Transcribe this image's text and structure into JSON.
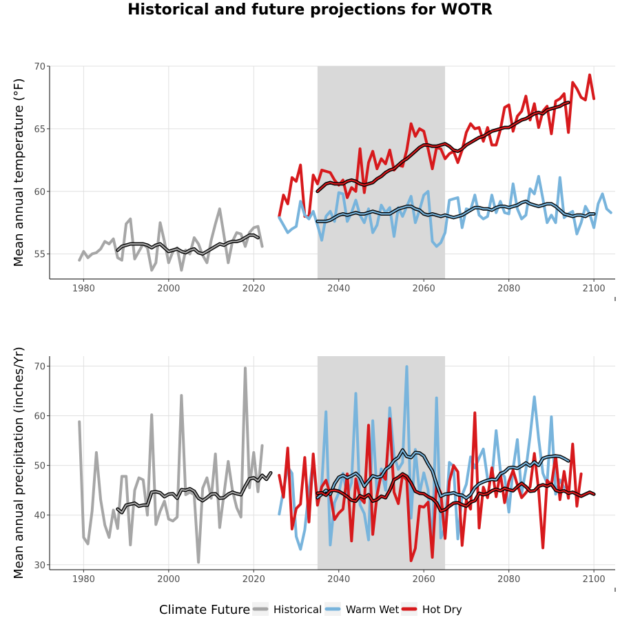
{
  "title": "Historical and future projections for WOTR",
  "colors": {
    "Historical": "#a6a6a6",
    "Warm Wet": "#78b4dc",
    "Hot Dry": "#d7191c",
    "smooth": "#000000",
    "period_band": "#d9d9d9"
  },
  "legend": {
    "title": "Climate Future",
    "items": [
      "Historical",
      "Warm Wet",
      "Hot Dry"
    ]
  },
  "chart_data": [
    {
      "type": "line",
      "ylabel": "Mean annual temperature (°F)",
      "xlim": [
        1972,
        2105
      ],
      "ylim": [
        53,
        70
      ],
      "xticks": [
        1980,
        2000,
        2020,
        2040,
        2060,
        2080,
        2100
      ],
      "yticks": [
        55,
        60,
        65,
        70
      ],
      "grid": true,
      "shaded_period": [
        2035,
        2065
      ],
      "series": [
        {
          "name": "Historical",
          "x_start": 1979,
          "values": [
            54.5,
            55.2,
            54.7,
            55.0,
            55.1,
            55.4,
            56.0,
            55.8,
            56.2,
            54.7,
            54.5,
            57.4,
            57.8,
            54.6,
            55.2,
            55.8,
            55.5,
            53.7,
            54.3,
            57.5,
            56.0,
            54.3,
            55.2,
            55.5,
            53.7,
            55.3,
            55.0,
            56.3,
            55.8,
            54.9,
            54.3,
            56.1,
            57.4,
            58.6,
            56.5,
            54.3,
            56.0,
            56.7,
            56.6,
            55.6,
            56.7,
            57.1,
            57.2,
            55.6
          ]
        },
        {
          "name": "Hot Dry",
          "x_start": 2026,
          "values": [
            58.0,
            59.7,
            59.0,
            61.1,
            60.8,
            62.1,
            58.0,
            58.0,
            61.3,
            60.6,
            61.7,
            61.6,
            61.5,
            60.9,
            60.5,
            60.9,
            59.5,
            60.3,
            60.0,
            63.4,
            59.9,
            62.3,
            63.2,
            61.8,
            62.6,
            62.2,
            63.3,
            61.7,
            62.1,
            62.0,
            63.3,
            65.4,
            64.4,
            65.0,
            64.8,
            63.4,
            61.8,
            63.5,
            63.4,
            62.6,
            63.0,
            63.2,
            62.3,
            63.3,
            64.7,
            65.4,
            65.0,
            65.1,
            64.0,
            65.1,
            63.7,
            63.7,
            64.9,
            66.7,
            66.9,
            64.8,
            66.0,
            66.4,
            67.6,
            65.7,
            67.0,
            65.1,
            66.4,
            66.8,
            64.6,
            67.2,
            67.4,
            67.8,
            64.7,
            68.7,
            68.2,
            67.5,
            67.3,
            69.3,
            67.4
          ]
        },
        {
          "name": "Warm Wet",
          "x_start": 2026,
          "values": [
            57.9,
            57.3,
            56.7,
            57.0,
            57.2,
            59.2,
            58.1,
            57.8,
            58.4,
            57.3,
            56.1,
            58.0,
            58.4,
            57.6,
            59.9,
            59.8,
            57.6,
            58.3,
            59.3,
            58.1,
            57.5,
            58.6,
            56.7,
            57.3,
            58.9,
            58.3,
            58.7,
            56.4,
            58.7,
            58.0,
            58.8,
            59.6,
            57.5,
            58.5,
            59.7,
            60.0,
            56.0,
            55.6,
            55.9,
            56.7,
            59.3,
            59.4,
            59.5,
            57.1,
            58.6,
            58.5,
            59.7,
            58.1,
            57.8,
            58.0,
            59.7,
            58.3,
            59.2,
            58.3,
            58.2,
            60.6,
            58.6,
            57.8,
            58.1,
            60.2,
            59.8,
            61.2,
            59.4,
            57.5,
            58.1,
            57.5,
            61.1,
            57.9,
            58.2,
            58.4,
            56.6,
            57.5,
            58.8,
            58.2,
            57.1,
            59.0,
            59.8,
            58.6,
            58.3
          ]
        },
        {
          "name": "Historical smooth",
          "x_start": 1988,
          "values": [
            55.3,
            55.6,
            55.7,
            55.8,
            55.8,
            55.8,
            55.8,
            55.7,
            55.5,
            55.7,
            55.8,
            55.5,
            55.2,
            55.3,
            55.4,
            55.2,
            55.1,
            55.3,
            55.4,
            55.1,
            55.0,
            55.2,
            55.4,
            55.6,
            55.8,
            55.7,
            55.9,
            56.0,
            56.0,
            56.1,
            56.3,
            56.5,
            56.5,
            56.3
          ]
        },
        {
          "name": "Hot Dry smooth",
          "x_start": 2035,
          "values": [
            60.0,
            60.3,
            60.6,
            60.7,
            60.6,
            60.6,
            60.6,
            60.8,
            60.9,
            60.8,
            60.6,
            60.5,
            60.6,
            60.7,
            61.0,
            61.2,
            61.5,
            61.7,
            61.8,
            62.1,
            62.4,
            62.6,
            62.9,
            63.2,
            63.5,
            63.7,
            63.7,
            63.6,
            63.6,
            63.7,
            63.8,
            63.6,
            63.3,
            63.2,
            63.4,
            63.7,
            63.9,
            64.1,
            64.3,
            64.4,
            64.6,
            64.8,
            64.9,
            65.0,
            65.1,
            65.1,
            65.3,
            65.5,
            65.7,
            65.8,
            66.0,
            66.2,
            66.3,
            66.2,
            66.5,
            66.6,
            66.7,
            66.8,
            67.0,
            67.1
          ]
        },
        {
          "name": "Warm Wet smooth",
          "x_start": 2035,
          "values": [
            57.6,
            57.6,
            57.6,
            57.7,
            57.9,
            58.1,
            58.2,
            58.1,
            58.2,
            58.3,
            58.2,
            58.2,
            58.3,
            58.4,
            58.3,
            58.2,
            58.2,
            58.2,
            58.4,
            58.6,
            58.7,
            58.8,
            58.8,
            58.6,
            58.5,
            58.2,
            58.1,
            58.2,
            58.1,
            58.0,
            58.1,
            58.0,
            57.9,
            58.0,
            58.1,
            58.3,
            58.5,
            58.7,
            58.7,
            58.6,
            58.6,
            58.5,
            58.7,
            58.8,
            58.8,
            58.7,
            58.8,
            58.9,
            59.1,
            59.2,
            59.0,
            58.9,
            58.8,
            58.9,
            59.0,
            59.0,
            58.8,
            58.5,
            58.2,
            58.1,
            58.0,
            58.1,
            58.1,
            58.0,
            58.2,
            58.2
          ]
        }
      ]
    },
    {
      "type": "line",
      "ylabel": "Mean annual precipitation (inches/Yr)",
      "xlim": [
        1972,
        2105
      ],
      "ylim": [
        29,
        72
      ],
      "xticks": [
        1980,
        2000,
        2020,
        2040,
        2060,
        2080,
        2100
      ],
      "yticks": [
        30,
        40,
        50,
        60,
        70
      ],
      "grid": true,
      "shaded_period": [
        2035,
        2065
      ],
      "series": [
        {
          "name": "Historical",
          "x_start": 1979,
          "values": [
            58.8,
            35.5,
            34.2,
            40.8,
            52.6,
            43.1,
            38.0,
            35.5,
            41.0,
            37.3,
            47.8,
            47.8,
            34.0,
            45.0,
            47.5,
            47.1,
            40.0,
            60.2,
            38.1,
            40.8,
            42.8,
            39.2,
            38.8,
            39.6,
            64.1,
            44.1,
            44.6,
            44.1,
            30.5,
            45.4,
            47.5,
            43.4,
            52.3,
            37.5,
            44.2,
            50.8,
            45.0,
            41.5,
            39.6,
            69.6,
            45.5,
            52.6,
            44.7,
            54.0
          ]
        },
        {
          "name": "Warm Wet",
          "x_start": 2026,
          "values": [
            40.2,
            45.0,
            49.7,
            48.4,
            35.7,
            33.1,
            37.0,
            45.0,
            50.9,
            42.0,
            46.2,
            60.8,
            34.0,
            42.5,
            44.5,
            48.4,
            44.0,
            46.5,
            64.5,
            42.1,
            40.3,
            35.0,
            59.0,
            44.1,
            49.3,
            45.0,
            61.6,
            52.0,
            49.2,
            50.6,
            69.9,
            39.4,
            53.2,
            44.3,
            48.5,
            45.1,
            33.3,
            63.6,
            35.4,
            37.5,
            50.6,
            49.8,
            35.2,
            44.0,
            46.2,
            51.7,
            49.5,
            51.5,
            53.3,
            47.3,
            47.2,
            57.0,
            49.0,
            47.7,
            40.6,
            49.3,
            55.2,
            44.3,
            49.2,
            55.9,
            63.8,
            55.4,
            48.4,
            46.4,
            59.8,
            44.2,
            47.1,
            45.5
          ]
        },
        {
          "name": "Hot Dry",
          "x_start": 2026,
          "values": [
            48.0,
            43.6,
            53.5,
            37.2,
            41.3,
            42.2,
            51.6,
            38.6,
            52.3,
            42.0,
            45.7,
            47.0,
            44.2,
            39.1,
            40.4,
            41.2,
            48.3,
            34.8,
            47.3,
            43.5,
            42.5,
            58.1,
            36.1,
            44.0,
            48.3,
            47.2,
            59.4,
            44.6,
            42.3,
            48.1,
            47.0,
            30.8,
            33.3,
            41.8,
            41.6,
            42.6,
            31.5,
            46.2,
            44.5,
            35.3,
            46.8,
            50.0,
            48.7,
            33.9,
            43.0,
            41.2,
            60.6,
            37.4,
            45.6,
            43.5,
            49.5,
            43.7,
            48.5,
            42.5,
            46.8,
            49.0,
            46.1,
            43.5,
            44.5,
            45.7,
            52.4,
            45.0,
            33.4,
            47.0,
            46.0,
            52.0,
            43.1,
            48.8,
            43.4,
            54.3,
            41.8,
            48.3
          ]
        },
        {
          "name": "Historical smooth",
          "x_start": 1988,
          "values": [
            41.2,
            40.5,
            42.0,
            42.2,
            42.4,
            41.8,
            42.0,
            42.0,
            44.6,
            44.7,
            44.5,
            43.7,
            44.2,
            44.3,
            43.4,
            45.1,
            45.0,
            45.3,
            44.8,
            43.4,
            42.9,
            43.5,
            44.2,
            44.3,
            43.4,
            43.5,
            44.2,
            44.6,
            44.3,
            44.1,
            45.8,
            47.3,
            47.5,
            46.9,
            48.0,
            47.2,
            48.5
          ]
        },
        {
          "name": "Warm Wet smooth",
          "x_start": 2035,
          "values": [
            43.5,
            44.2,
            45.0,
            44.2,
            46.3,
            47.6,
            48.0,
            47.5,
            47.9,
            48.4,
            47.6,
            45.8,
            46.9,
            47.9,
            47.6,
            47.8,
            49.2,
            49.8,
            51.0,
            51.6,
            53.1,
            51.8,
            51.6,
            52.6,
            52.5,
            51.9,
            50.3,
            48.9,
            46.2,
            43.8,
            44.2,
            44.3,
            44.5,
            44.1,
            44.0,
            43.4,
            44.1,
            45.5,
            46.3,
            46.7,
            47.0,
            47.2,
            47.1,
            48.3,
            48.7,
            49.5,
            49.6,
            49.4,
            49.9,
            50.5,
            49.9,
            50.7,
            50.0,
            51.4,
            51.7,
            51.8,
            51.9,
            51.8,
            51.4,
            50.9
          ]
        },
        {
          "name": "Hot Dry smooth",
          "x_start": 2035,
          "values": [
            44.4,
            44.5,
            44.0,
            44.9,
            45.0,
            44.8,
            44.3,
            43.7,
            43.0,
            42.8,
            43.9,
            43.5,
            44.1,
            42.8,
            43.1,
            43.8,
            43.5,
            45.0,
            47.1,
            47.6,
            48.3,
            47.8,
            46.5,
            44.8,
            44.4,
            44.3,
            43.7,
            43.3,
            42.5,
            40.8,
            41.1,
            41.8,
            42.4,
            42.5,
            42.1,
            41.8,
            42.6,
            42.9,
            44.4,
            44.1,
            44.3,
            44.9,
            45.2,
            44.9,
            45.4,
            45.1,
            44.9,
            45.7,
            46.4,
            45.7,
            44.8,
            44.9,
            45.8,
            46.1,
            45.8,
            46.2,
            45.0,
            44.7,
            44.9,
            44.4,
            44.6,
            44.2,
            43.8,
            44.2,
            44.6,
            44.2
          ]
        }
      ]
    }
  ]
}
